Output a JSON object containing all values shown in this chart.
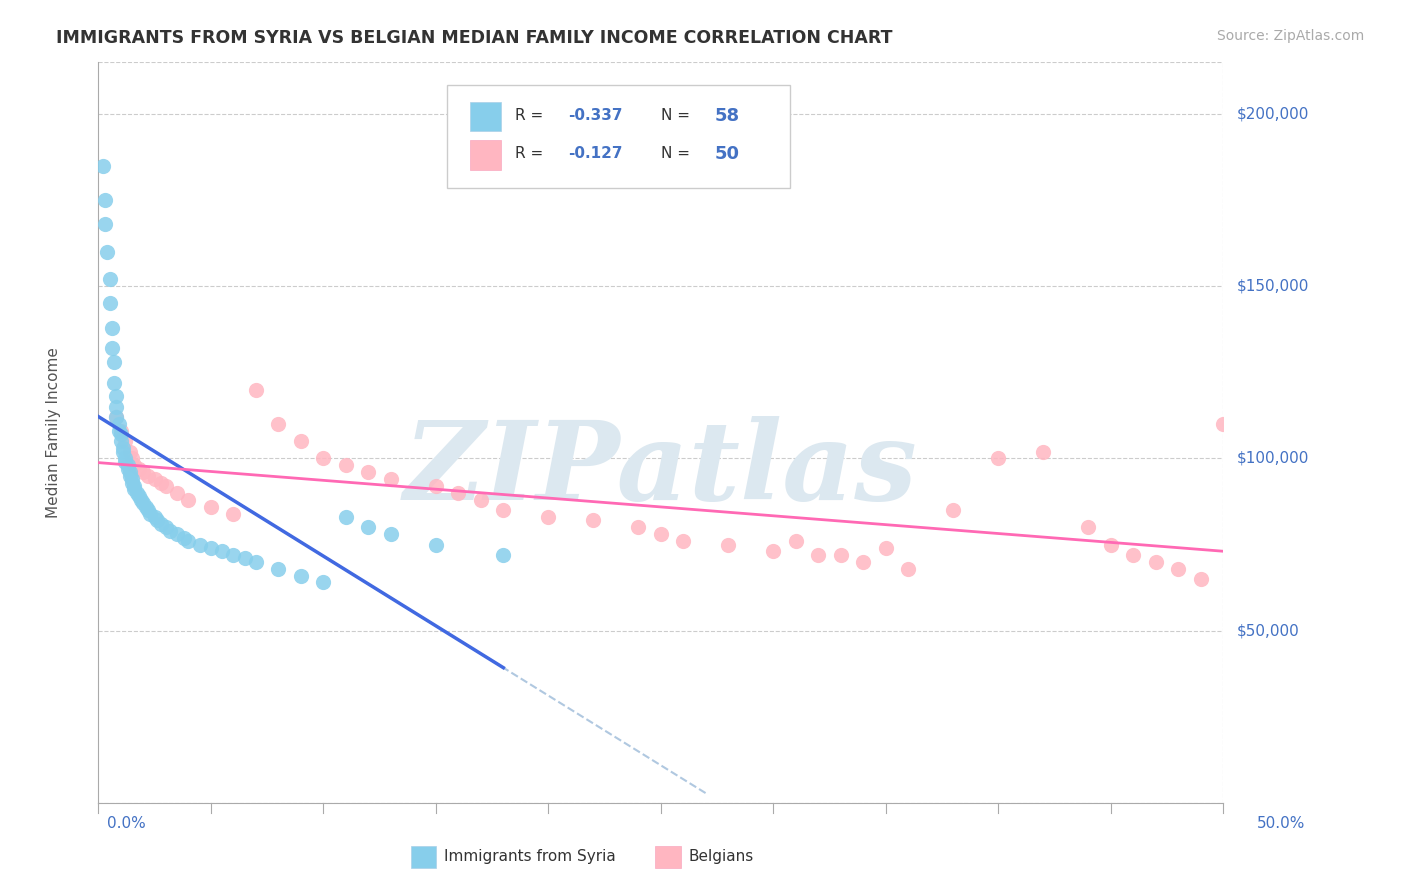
{
  "title": "IMMIGRANTS FROM SYRIA VS BELGIAN MEDIAN FAMILY INCOME CORRELATION CHART",
  "source": "Source: ZipAtlas.com",
  "ylabel": "Median Family Income",
  "y_ticks": [
    0,
    50000,
    100000,
    150000,
    200000
  ],
  "y_tick_labels": [
    "",
    "$50,000",
    "$100,000",
    "$150,000",
    "$200,000"
  ],
  "x_min": 0.0,
  "x_max": 0.5,
  "y_min": 0,
  "y_max": 215000,
  "legend_r1": "-0.337",
  "legend_n1": "58",
  "legend_r2": "-0.127",
  "legend_n2": "50",
  "color_syria": "#87CEEB",
  "color_belgians": "#FFB6C1",
  "color_syria_line": "#4169E1",
  "color_belgians_line": "#FF69B4",
  "color_dashed": "#B0C8E0",
  "watermark": "ZIPatlas",
  "watermark_color": "#DCE8F0",
  "syria_x": [
    0.002,
    0.003,
    0.003,
    0.004,
    0.005,
    0.005,
    0.006,
    0.006,
    0.007,
    0.007,
    0.008,
    0.008,
    0.008,
    0.009,
    0.009,
    0.01,
    0.01,
    0.011,
    0.011,
    0.012,
    0.012,
    0.013,
    0.013,
    0.014,
    0.014,
    0.015,
    0.015,
    0.016,
    0.016,
    0.017,
    0.018,
    0.019,
    0.02,
    0.021,
    0.022,
    0.023,
    0.025,
    0.026,
    0.028,
    0.03,
    0.032,
    0.035,
    0.038,
    0.04,
    0.045,
    0.05,
    0.055,
    0.06,
    0.065,
    0.07,
    0.08,
    0.09,
    0.1,
    0.11,
    0.12,
    0.13,
    0.15,
    0.18
  ],
  "syria_y": [
    185000,
    175000,
    168000,
    160000,
    152000,
    145000,
    138000,
    132000,
    128000,
    122000,
    118000,
    115000,
    112000,
    110000,
    108000,
    107000,
    105000,
    103000,
    102000,
    100000,
    99000,
    98000,
    97000,
    96000,
    95000,
    94000,
    93000,
    92000,
    91000,
    90000,
    89000,
    88000,
    87000,
    86000,
    85000,
    84000,
    83000,
    82000,
    81000,
    80000,
    79000,
    78000,
    77000,
    76000,
    75000,
    74000,
    73000,
    72000,
    71000,
    70000,
    68000,
    66000,
    64000,
    83000,
    80000,
    78000,
    75000,
    72000
  ],
  "belgians_x": [
    0.008,
    0.01,
    0.012,
    0.014,
    0.015,
    0.016,
    0.018,
    0.02,
    0.022,
    0.025,
    0.028,
    0.03,
    0.035,
    0.04,
    0.05,
    0.06,
    0.07,
    0.08,
    0.09,
    0.1,
    0.11,
    0.12,
    0.13,
    0.15,
    0.16,
    0.17,
    0.18,
    0.2,
    0.22,
    0.24,
    0.25,
    0.26,
    0.28,
    0.3,
    0.32,
    0.34,
    0.36,
    0.38,
    0.4,
    0.42,
    0.44,
    0.45,
    0.46,
    0.47,
    0.48,
    0.49,
    0.5,
    0.35,
    0.33,
    0.31
  ],
  "belgians_y": [
    112000,
    108000,
    105000,
    102000,
    100000,
    98000,
    97000,
    96000,
    95000,
    94000,
    93000,
    92000,
    90000,
    88000,
    86000,
    84000,
    120000,
    110000,
    105000,
    100000,
    98000,
    96000,
    94000,
    92000,
    90000,
    88000,
    85000,
    83000,
    82000,
    80000,
    78000,
    76000,
    75000,
    73000,
    72000,
    70000,
    68000,
    85000,
    100000,
    102000,
    80000,
    75000,
    72000,
    70000,
    68000,
    65000,
    110000,
    74000,
    72000,
    76000
  ]
}
